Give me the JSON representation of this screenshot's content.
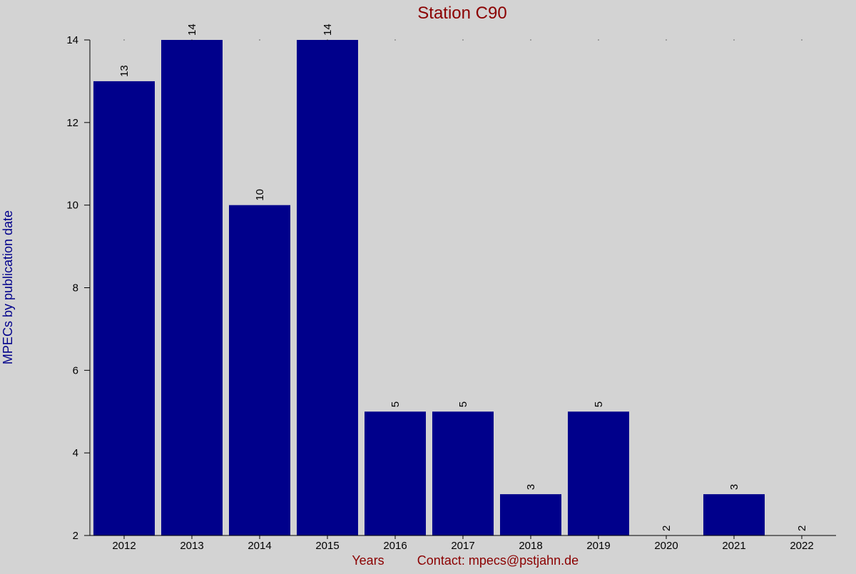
{
  "chart_data": {
    "type": "bar",
    "title": "Station C90",
    "xlabel": "Years",
    "ylabel": "MPECs by publication date",
    "footer_contact": "Contact: mpecs@pstjahn.de",
    "categories": [
      "2012",
      "2013",
      "2014",
      "2015",
      "2016",
      "2017",
      "2018",
      "2019",
      "2020",
      "2021",
      "2022"
    ],
    "values": [
      13,
      14,
      10,
      14,
      5,
      5,
      3,
      5,
      2,
      3,
      2
    ],
    "data_labels": [
      "13",
      "14",
      "10",
      "14",
      "5",
      "5",
      "3",
      "5",
      "2",
      "3",
      "2"
    ],
    "ylim": [
      2,
      14
    ],
    "yticks": [
      2,
      4,
      6,
      8,
      10,
      12,
      14
    ],
    "grid": false,
    "colors": {
      "bar": "#00008b",
      "title": "#8b0000",
      "ylabel": "#00008b",
      "footer": "#8b0000",
      "axis": "#000000",
      "background": "#d3d3d3"
    }
  }
}
